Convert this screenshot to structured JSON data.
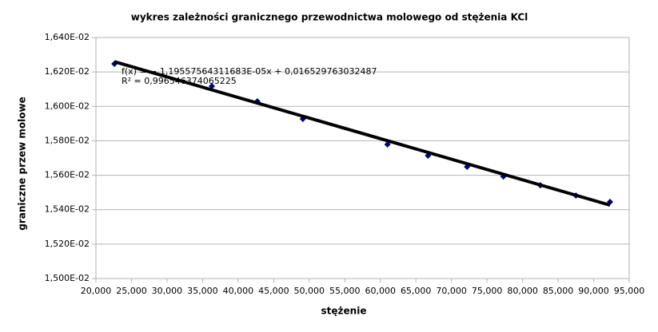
{
  "chart_data": {
    "type": "scatter",
    "title": "wykres zależności granicznego przewodnictwa molowego od stężenia KCl",
    "x_label": "stężenie",
    "y_label": "graniczne przew molowe",
    "series": [
      {
        "name": "graniczne przew molowe",
        "color": "#000080",
        "x": [
          22.6,
          36.3,
          42.7,
          49.1,
          61.0,
          66.7,
          72.2,
          77.3,
          82.5,
          87.5,
          92.3
        ],
        "values": [
          0.016247,
          0.016117,
          0.016029,
          0.015927,
          0.015779,
          0.015714,
          0.015649,
          0.015593,
          0.015542,
          0.015482,
          0.015445
        ]
      }
    ],
    "trendline": {
      "color": "#000000",
      "x": [
        22.6,
        92.3
      ],
      "values": [
        0.0162596,
        0.0154263
      ],
      "equation": "f(x) = − 1,19557564311683E-05x + 0,016529763032487",
      "r2": "R² = 0,996546374065225"
    },
    "xlim": [
      20,
      95
    ],
    "xticks": [
      {
        "value": 20,
        "label": "20,000"
      },
      {
        "value": 25,
        "label": "25,000"
      },
      {
        "value": 30,
        "label": "30,000"
      },
      {
        "value": 35,
        "label": "35,000"
      },
      {
        "value": 40,
        "label": "40,000"
      },
      {
        "value": 45,
        "label": "45,000"
      },
      {
        "value": 50,
        "label": "50,000"
      },
      {
        "value": 55,
        "label": "55,000"
      },
      {
        "value": 60,
        "label": "60,000"
      },
      {
        "value": 65,
        "label": "65,000"
      },
      {
        "value": 70,
        "label": "70,000"
      },
      {
        "value": 75,
        "label": "75,000"
      },
      {
        "value": 80,
        "label": "80,000"
      },
      {
        "value": 85,
        "label": "85,000"
      },
      {
        "value": 90,
        "label": "90,000"
      },
      {
        "value": 95,
        "label": "95,000"
      }
    ],
    "ylim": [
      0.015,
      0.0164
    ],
    "yticks": [
      {
        "value": 0.015,
        "label": "1,500E-02"
      },
      {
        "value": 0.0152,
        "label": "1,520E-02"
      },
      {
        "value": 0.0154,
        "label": "1,540E-02"
      },
      {
        "value": 0.0156,
        "label": "1,560E-02"
      },
      {
        "value": 0.0158,
        "label": "1,580E-02"
      },
      {
        "value": 0.016,
        "label": "1,600E-02"
      },
      {
        "value": 0.0162,
        "label": "1,620E-02"
      },
      {
        "value": 0.0164,
        "label": "1,640E-02"
      }
    ],
    "grid": true
  }
}
